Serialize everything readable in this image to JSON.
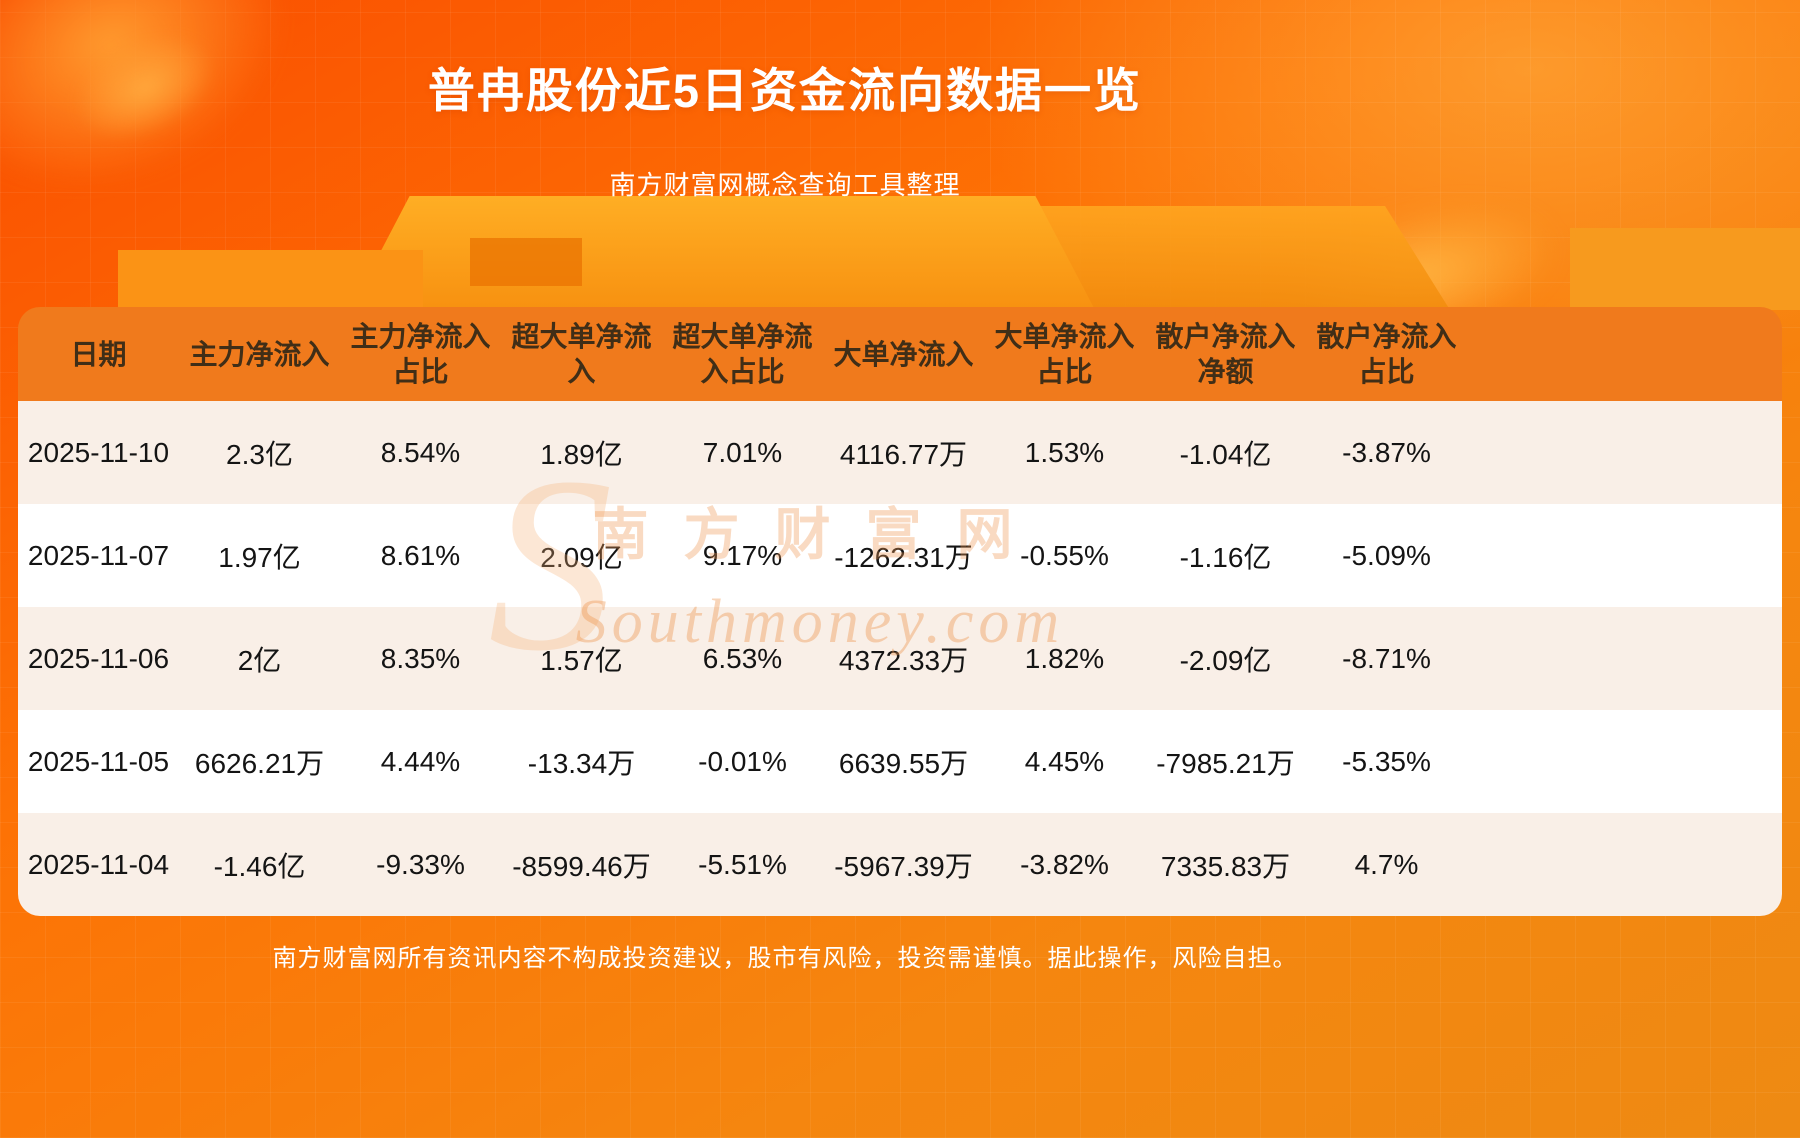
{
  "page": {
    "title": "普冉股份近5日资金流向数据一览",
    "subtitle": "南方财富网概念查询工具整理",
    "footer": "南方财富网所有资讯内容不构成投资建议，股市有风险，投资需谨慎。据此操作，风险自担。",
    "watermark_cn": "南方财富网",
    "watermark_en": "Southmoney.com",
    "watermark_monogram": "S"
  },
  "colors": {
    "header_bg": "#f07a1c",
    "row_odd": "#f9efe7",
    "row_even": "#ffffff",
    "background_accent": "#ff7205",
    "title_color": "#ffffff"
  },
  "chart_data": {
    "type": "table",
    "title": "普冉股份近5日资金流向数据一览",
    "columns": [
      "日期",
      "主力净流入",
      "主力净流入占比",
      "超大单净流入",
      "超大单净流入占比",
      "大单净流入",
      "大单净流入占比",
      "散户净流入净额",
      "散户净流入占比"
    ],
    "rows": [
      [
        "2025-11-10",
        "2.3亿",
        "8.54%",
        "1.89亿",
        "7.01%",
        "4116.77万",
        "1.53%",
        "-1.04亿",
        "-3.87%"
      ],
      [
        "2025-11-07",
        "1.97亿",
        "8.61%",
        "2.09亿",
        "9.17%",
        "-1262.31万",
        "-0.55%",
        "-1.16亿",
        "-5.09%"
      ],
      [
        "2025-11-06",
        "2亿",
        "8.35%",
        "1.57亿",
        "6.53%",
        "4372.33万",
        "1.82%",
        "-2.09亿",
        "-8.71%"
      ],
      [
        "2025-11-05",
        "6626.21万",
        "4.44%",
        "-13.34万",
        "-0.01%",
        "6639.55万",
        "4.45%",
        "-7985.21万",
        "-5.35%"
      ],
      [
        "2025-11-04",
        "-1.46亿",
        "-9.33%",
        "-8599.46万",
        "-5.51%",
        "-5967.39万",
        "-3.82%",
        "7335.83万",
        "4.7%"
      ]
    ]
  }
}
